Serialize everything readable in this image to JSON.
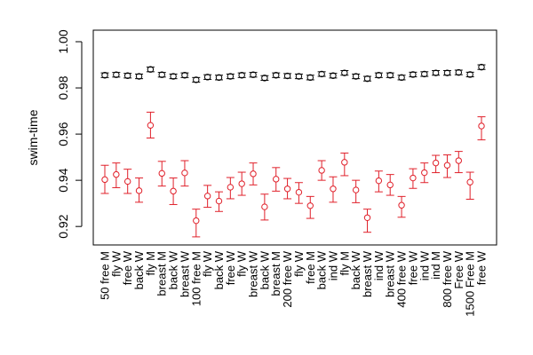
{
  "chart_data": {
    "type": "scatter",
    "title": "",
    "xlabel": "",
    "ylabel": "swim-time",
    "ylim": [
      0.912,
      1.005
    ],
    "yticks": [
      0.92,
      0.94,
      0.96,
      0.98,
      1.0
    ],
    "ytick_labels": [
      "0.92",
      "0.94",
      "0.96",
      "0.98",
      "1.00"
    ],
    "grid": false,
    "categories": [
      "50 free M",
      "fly W",
      "free W",
      "back W",
      "fly M",
      "breast M",
      "back W",
      "breast W",
      "100 free M",
      "fly W",
      "back W",
      "free W",
      "fly W",
      "breast W",
      "back W",
      "breast M",
      "200 free W",
      "fly W",
      "free M",
      "back W",
      "ind W",
      "fly M",
      "back W",
      "breast W",
      "ind W",
      "breast W",
      "400 free W",
      "free W",
      "ind W",
      "ind M",
      "800 free W",
      "Free W",
      "1500 Free M",
      "free W"
    ],
    "series": [
      {
        "color": "#000000",
        "points": [
          {
            "y": 0.9855,
            "lo": 0.9845,
            "hi": 0.9865
          },
          {
            "y": 0.9857,
            "lo": 0.9847,
            "hi": 0.9867
          },
          {
            "y": 0.9853,
            "lo": 0.9843,
            "hi": 0.9863
          },
          {
            "y": 0.985,
            "lo": 0.984,
            "hi": 0.986
          },
          {
            "y": 0.988,
            "lo": 0.987,
            "hi": 0.989
          },
          {
            "y": 0.9857,
            "lo": 0.9847,
            "hi": 0.9867
          },
          {
            "y": 0.985,
            "lo": 0.984,
            "hi": 0.986
          },
          {
            "y": 0.9855,
            "lo": 0.9845,
            "hi": 0.9865
          },
          {
            "y": 0.9835,
            "lo": 0.9825,
            "hi": 0.9845
          },
          {
            "y": 0.9847,
            "lo": 0.9837,
            "hi": 0.9857
          },
          {
            "y": 0.9845,
            "lo": 0.9835,
            "hi": 0.9855
          },
          {
            "y": 0.985,
            "lo": 0.984,
            "hi": 0.986
          },
          {
            "y": 0.9855,
            "lo": 0.9845,
            "hi": 0.9865
          },
          {
            "y": 0.9857,
            "lo": 0.9847,
            "hi": 0.9867
          },
          {
            "y": 0.9843,
            "lo": 0.9833,
            "hi": 0.9853
          },
          {
            "y": 0.9855,
            "lo": 0.9845,
            "hi": 0.9865
          },
          {
            "y": 0.9852,
            "lo": 0.9842,
            "hi": 0.9862
          },
          {
            "y": 0.985,
            "lo": 0.984,
            "hi": 0.986
          },
          {
            "y": 0.9845,
            "lo": 0.9835,
            "hi": 0.9855
          },
          {
            "y": 0.986,
            "lo": 0.985,
            "hi": 0.987
          },
          {
            "y": 0.9853,
            "lo": 0.9843,
            "hi": 0.9863
          },
          {
            "y": 0.9865,
            "lo": 0.9855,
            "hi": 0.9875
          },
          {
            "y": 0.985,
            "lo": 0.984,
            "hi": 0.986
          },
          {
            "y": 0.984,
            "lo": 0.983,
            "hi": 0.985
          },
          {
            "y": 0.9855,
            "lo": 0.9845,
            "hi": 0.9865
          },
          {
            "y": 0.9855,
            "lo": 0.9845,
            "hi": 0.9865
          },
          {
            "y": 0.9845,
            "lo": 0.9835,
            "hi": 0.9855
          },
          {
            "y": 0.9858,
            "lo": 0.9848,
            "hi": 0.9868
          },
          {
            "y": 0.986,
            "lo": 0.985,
            "hi": 0.987
          },
          {
            "y": 0.9865,
            "lo": 0.9855,
            "hi": 0.9875
          },
          {
            "y": 0.9865,
            "lo": 0.9855,
            "hi": 0.9875
          },
          {
            "y": 0.9867,
            "lo": 0.9857,
            "hi": 0.9877
          },
          {
            "y": 0.9858,
            "lo": 0.9848,
            "hi": 0.9868
          },
          {
            "y": 0.989,
            "lo": 0.988,
            "hi": 0.99
          }
        ]
      },
      {
        "color": "#e0202a",
        "points": [
          {
            "y": 0.9403,
            "lo": 0.9343,
            "hi": 0.9465
          },
          {
            "y": 0.9425,
            "lo": 0.9368,
            "hi": 0.9475
          },
          {
            "y": 0.9395,
            "lo": 0.9343,
            "hi": 0.9448
          },
          {
            "y": 0.9355,
            "lo": 0.9305,
            "hi": 0.941
          },
          {
            "y": 0.9638,
            "lo": 0.9583,
            "hi": 0.9695
          },
          {
            "y": 0.943,
            "lo": 0.9375,
            "hi": 0.9482
          },
          {
            "y": 0.9353,
            "lo": 0.9295,
            "hi": 0.941
          },
          {
            "y": 0.9432,
            "lo": 0.9375,
            "hi": 0.9485
          },
          {
            "y": 0.9225,
            "lo": 0.9155,
            "hi": 0.9275
          },
          {
            "y": 0.9332,
            "lo": 0.9283,
            "hi": 0.9378
          },
          {
            "y": 0.931,
            "lo": 0.9265,
            "hi": 0.935
          },
          {
            "y": 0.937,
            "lo": 0.932,
            "hi": 0.9412
          },
          {
            "y": 0.9385,
            "lo": 0.9335,
            "hi": 0.9435
          },
          {
            "y": 0.9428,
            "lo": 0.938,
            "hi": 0.9475
          },
          {
            "y": 0.9285,
            "lo": 0.9228,
            "hi": 0.934
          },
          {
            "y": 0.9405,
            "lo": 0.9353,
            "hi": 0.9455
          },
          {
            "y": 0.9363,
            "lo": 0.932,
            "hi": 0.9408
          },
          {
            "y": 0.9348,
            "lo": 0.93,
            "hi": 0.939
          },
          {
            "y": 0.929,
            "lo": 0.9235,
            "hi": 0.933
          },
          {
            "y": 0.9443,
            "lo": 0.94,
            "hi": 0.9485
          },
          {
            "y": 0.9363,
            "lo": 0.9305,
            "hi": 0.9415
          },
          {
            "y": 0.9478,
            "lo": 0.942,
            "hi": 0.9518
          },
          {
            "y": 0.9358,
            "lo": 0.9303,
            "hi": 0.94
          },
          {
            "y": 0.9238,
            "lo": 0.9175,
            "hi": 0.9275
          },
          {
            "y": 0.9398,
            "lo": 0.935,
            "hi": 0.944
          },
          {
            "y": 0.938,
            "lo": 0.9335,
            "hi": 0.9425
          },
          {
            "y": 0.9292,
            "lo": 0.924,
            "hi": 0.933
          },
          {
            "y": 0.941,
            "lo": 0.9365,
            "hi": 0.945
          },
          {
            "y": 0.9433,
            "lo": 0.939,
            "hi": 0.9475
          },
          {
            "y": 0.9475,
            "lo": 0.9433,
            "hi": 0.9508
          },
          {
            "y": 0.9465,
            "lo": 0.9412,
            "hi": 0.951
          },
          {
            "y": 0.9485,
            "lo": 0.9433,
            "hi": 0.9525
          },
          {
            "y": 0.9392,
            "lo": 0.9318,
            "hi": 0.9435
          },
          {
            "y": 0.9635,
            "lo": 0.9575,
            "hi": 0.9675
          }
        ]
      }
    ]
  }
}
